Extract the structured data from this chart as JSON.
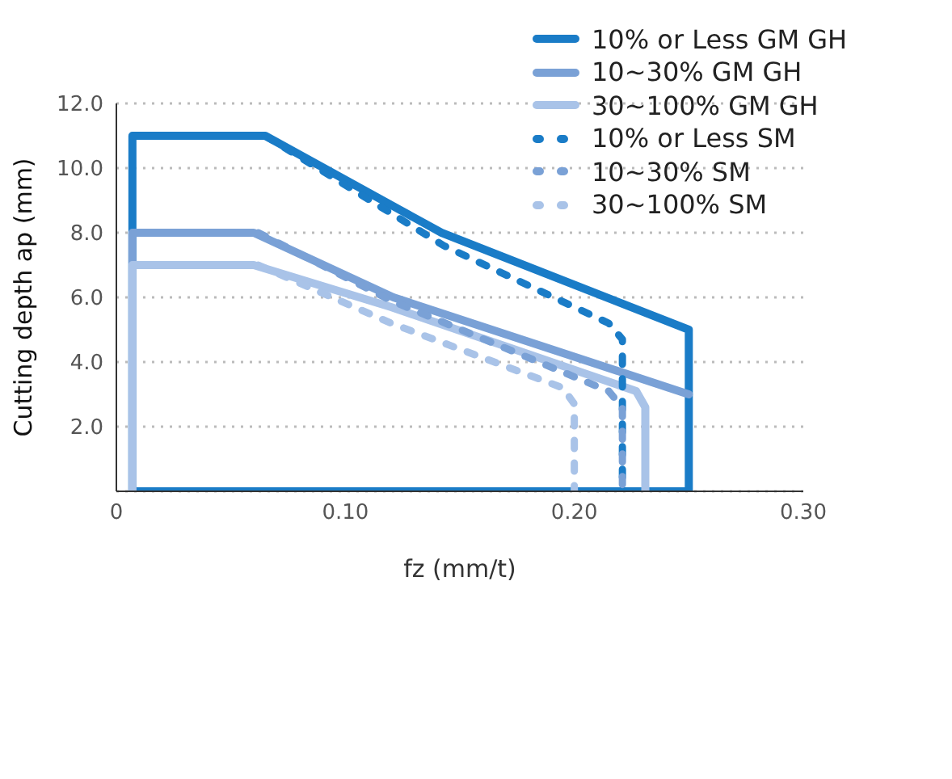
{
  "chart_data": {
    "type": "line",
    "xlabel": "fz (mm/t)",
    "ylabel": "Cutting depth ap (mm)",
    "xlim": [
      0,
      0.3
    ],
    "xticks": [
      0,
      {
        "value": 0.1,
        "label": "0.10"
      },
      {
        "value": 0.2,
        "label": "0.20"
      },
      {
        "value": 0.3,
        "label": "0.30"
      }
    ],
    "ylim": [
      0,
      12
    ],
    "yticks": [
      {
        "value": 0,
        "label": null
      },
      {
        "value": 2,
        "label": "2.0"
      },
      {
        "value": 4,
        "label": "4.0"
      },
      {
        "value": 6,
        "label": "6.0"
      },
      {
        "value": 8,
        "label": "8.0"
      },
      {
        "value": 10,
        "label": "10.0"
      },
      {
        "value": 12,
        "label": "12.0"
      }
    ],
    "grid": "y",
    "legend": "top right",
    "series": [
      {
        "name": "10% or Less GM GH",
        "color": "#1a7cc7",
        "line_style": "solid",
        "x": [
          0.007,
          0.007,
          0.065,
          0.142,
          0.25,
          0.25
        ],
        "values": [
          0,
          11,
          11,
          8,
          5,
          0
        ]
      },
      {
        "color": "#1a7cc7",
        "line_style": "solid",
        "x": [
          0.007,
          0.25
        ],
        "values": [
          0,
          0
        ]
      },
      {
        "name": "10~30% GM GH",
        "color": "#7aa1d6",
        "line_style": "solid",
        "x": [
          0.007,
          0.007,
          0.06,
          0.121,
          0.25
        ],
        "values": [
          0,
          8,
          8,
          6,
          3
        ]
      },
      {
        "name": "30~100% GM GH",
        "color": "#a9c3e8",
        "line_style": "solid",
        "x": [
          0.007,
          0.007,
          0.06,
          0.12,
          0.227,
          0.231,
          0.231
        ],
        "values": [
          0,
          7,
          7,
          5.7,
          3.1,
          2.6,
          0
        ]
      },
      {
        "name": "10% or Less SM",
        "color": "#1a7cc7",
        "line_style": "dashed",
        "x": [
          0.065,
          0.143,
          0.215,
          0.221,
          0.221
        ],
        "values": [
          11,
          7.6,
          5.2,
          4.7,
          0
        ]
      },
      {
        "name": "10~30% SM",
        "color": "#7aa1d6",
        "line_style": "dashed",
        "x": [
          0.062,
          0.12,
          0.215,
          0.221,
          0.221
        ],
        "values": [
          8,
          5.9,
          3.1,
          2.6,
          0
        ]
      },
      {
        "name": "30~100% SM",
        "color": "#a9c3e8",
        "line_style": "dashed",
        "x": [
          0.062,
          0.12,
          0.195,
          0.2,
          0.2
        ],
        "values": [
          7,
          5.2,
          3.2,
          2.7,
          0
        ]
      }
    ]
  }
}
